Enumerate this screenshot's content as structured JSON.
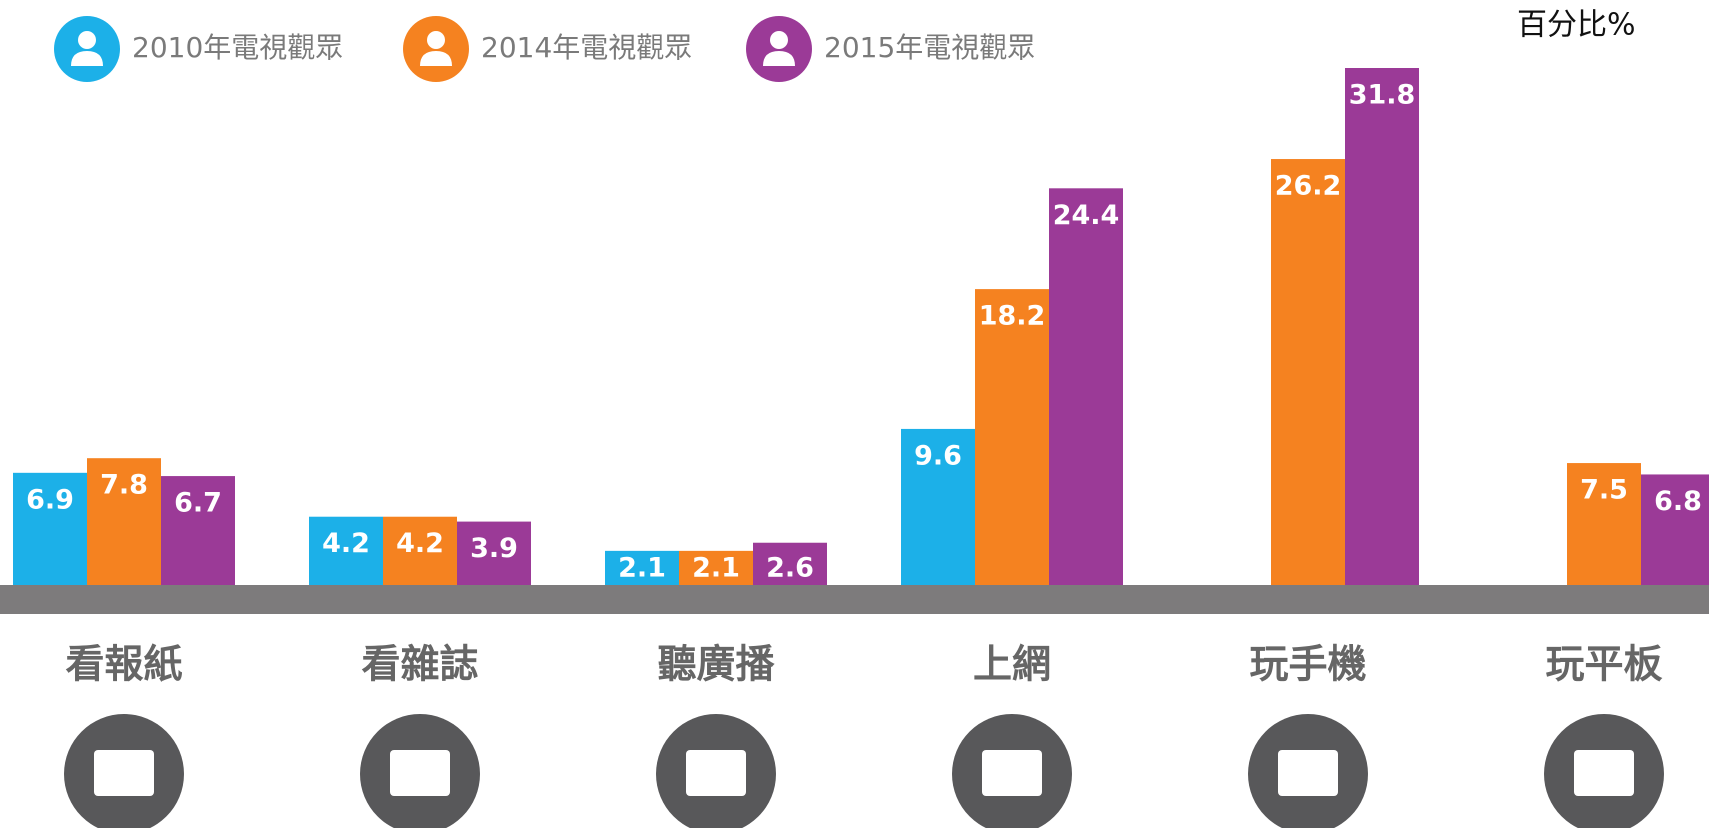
{
  "chart_data": {
    "type": "bar",
    "unit_label": "百分比%",
    "categories": [
      "看報紙",
      "看雜誌",
      "聽廣播",
      "上網",
      "玩手機",
      "玩平板"
    ],
    "series": [
      {
        "name": "2010年電視觀眾",
        "color": "#1cb0e8",
        "values": [
          6.9,
          4.2,
          2.1,
          9.6,
          null,
          null
        ]
      },
      {
        "name": "2014年電視觀眾",
        "color": "#f58220",
        "values": [
          7.8,
          4.2,
          2.1,
          18.2,
          26.2,
          7.5
        ]
      },
      {
        "name": "2015年電視觀眾",
        "color": "#9b3a97",
        "values": [
          6.7,
          3.9,
          2.6,
          24.4,
          31.8,
          6.8
        ]
      }
    ]
  }
}
